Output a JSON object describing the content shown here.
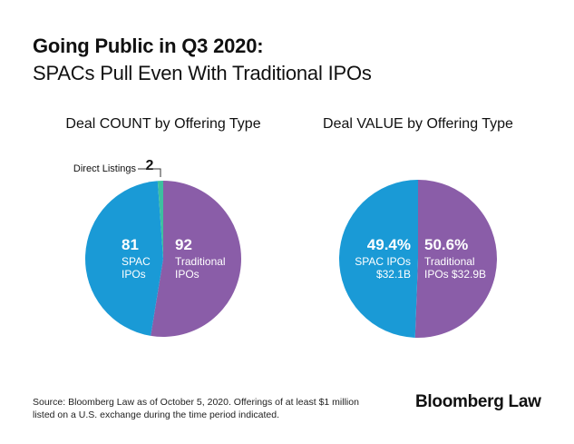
{
  "title_line1": "Going Public in Q3 2020:",
  "title_line2": "SPACs Pull Even With Traditional IPOs",
  "chart_data": [
    {
      "type": "pie",
      "title": "Deal COUNT by Offering Type",
      "slices": [
        {
          "label": "Traditional IPOs",
          "value": 92,
          "value_label": "92",
          "name_lines": [
            "Traditional",
            "IPOs"
          ],
          "color": "#8a5da8"
        },
        {
          "label": "SPAC IPOs",
          "value": 81,
          "value_label": "81",
          "name_lines": [
            "SPAC",
            "IPOs"
          ],
          "color": "#1a9ad6"
        },
        {
          "label": "Direct Listings",
          "value": 2,
          "value_label": "2",
          "name_lines": [
            "Direct Listings"
          ],
          "color": "#3dbf9f"
        }
      ]
    },
    {
      "type": "pie",
      "title": "Deal VALUE by Offering Type",
      "slices": [
        {
          "label": "Traditional IPOs",
          "value": 50.6,
          "value_label": "50.6%",
          "name_lines": [
            "Traditional",
            "IPOs  $32.9B"
          ],
          "color": "#8a5da8"
        },
        {
          "label": "SPAC IPOs",
          "value": 49.4,
          "value_label": "49.4%",
          "name_lines": [
            "SPAC IPOs",
            "$32.1B"
          ],
          "color": "#1a9ad6"
        }
      ]
    }
  ],
  "source_line1": "Source: Bloomberg Law as of October 5, 2020. Offerings of at least $1 million",
  "source_line2": "listed on a U.S. exchange during the time period indicated.",
  "logo": "Bloomberg Law"
}
